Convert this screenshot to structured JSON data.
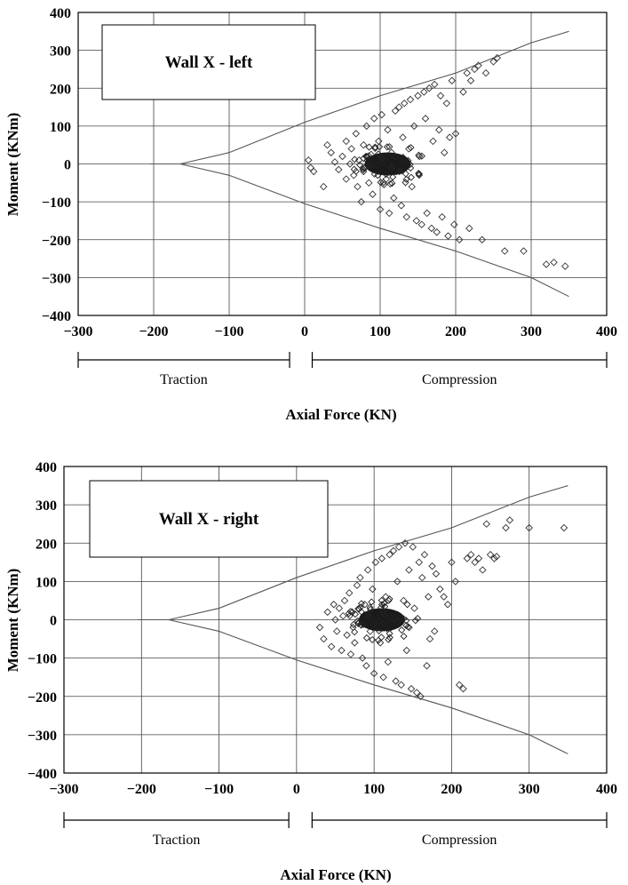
{
  "chart_data": [
    {
      "type": "scatter",
      "title": "Wall X - left",
      "xlabel": "Axial Force (KN)",
      "ylabel": "Moment (KNm)",
      "xlim": [
        -300,
        400
      ],
      "ylim": [
        -400,
        400
      ],
      "xticks": [
        -300,
        -200,
        -100,
        0,
        100,
        200,
        300,
        400
      ],
      "yticks": [
        -400,
        -300,
        -200,
        -100,
        0,
        100,
        200,
        300,
        400
      ],
      "grid": true,
      "regions": [
        {
          "label": "Traction",
          "from": -300,
          "to": -20
        },
        {
          "label": "Compression",
          "from": 10,
          "to": 400
        }
      ],
      "envelope": {
        "upper": [
          [
            -205,
            0
          ],
          [
            -165,
            0
          ],
          [
            -100,
            30
          ],
          [
            0,
            110
          ],
          [
            100,
            180
          ],
          [
            200,
            240
          ],
          [
            300,
            320
          ],
          [
            350,
            350
          ]
        ],
        "lower": [
          [
            -205,
            0
          ],
          [
            -165,
            0
          ],
          [
            -100,
            -30
          ],
          [
            0,
            -105
          ],
          [
            100,
            -170
          ],
          [
            200,
            -230
          ],
          [
            300,
            -300
          ],
          [
            350,
            -350
          ]
        ]
      },
      "series": [
        {
          "values": [
            [
              5,
              10
            ],
            [
              8,
              -10
            ],
            [
              12,
              -20
            ],
            [
              25,
              -60
            ],
            [
              30,
              50
            ],
            [
              35,
              30
            ],
            [
              40,
              5
            ],
            [
              45,
              -15
            ],
            [
              50,
              20
            ],
            [
              55,
              -40
            ],
            [
              55,
              60
            ],
            [
              60,
              0
            ],
            [
              62,
              40
            ],
            [
              65,
              -30
            ],
            [
              68,
              80
            ],
            [
              70,
              -60
            ],
            [
              72,
              10
            ],
            [
              75,
              -100
            ],
            [
              78,
              50
            ],
            [
              80,
              -10
            ],
            [
              82,
              100
            ],
            [
              85,
              -50
            ],
            [
              88,
              25
            ],
            [
              90,
              -80
            ],
            [
              92,
              120
            ],
            [
              95,
              -5
            ],
            [
              98,
              60
            ],
            [
              100,
              -120
            ],
            [
              102,
              130
            ],
            [
              104,
              10
            ],
            [
              108,
              -40
            ],
            [
              110,
              90
            ],
            [
              112,
              -130
            ],
            [
              115,
              30
            ],
            [
              118,
              -90
            ],
            [
              120,
              140
            ],
            [
              122,
              -20
            ],
            [
              125,
              150
            ],
            [
              128,
              -110
            ],
            [
              130,
              70
            ],
            [
              132,
              160
            ],
            [
              135,
              -140
            ],
            [
              138,
              40
            ],
            [
              140,
              170
            ],
            [
              142,
              -60
            ],
            [
              145,
              100
            ],
            [
              148,
              -150
            ],
            [
              150,
              180
            ],
            [
              152,
              20
            ],
            [
              155,
              -160
            ],
            [
              158,
              190
            ],
            [
              160,
              120
            ],
            [
              162,
              -130
            ],
            [
              165,
              200
            ],
            [
              168,
              -170
            ],
            [
              170,
              60
            ],
            [
              172,
              210
            ],
            [
              175,
              -180
            ],
            [
              178,
              90
            ],
            [
              180,
              180
            ],
            [
              182,
              -140
            ],
            [
              185,
              30
            ],
            [
              188,
              160
            ],
            [
              190,
              -190
            ],
            [
              192,
              70
            ],
            [
              195,
              220
            ],
            [
              198,
              -160
            ],
            [
              200,
              80
            ],
            [
              205,
              -200
            ],
            [
              210,
              190
            ],
            [
              215,
              240
            ],
            [
              218,
              -170
            ],
            [
              220,
              220
            ],
            [
              225,
              250
            ],
            [
              230,
              260
            ],
            [
              235,
              -200
            ],
            [
              240,
              240
            ],
            [
              250,
              270
            ],
            [
              255,
              280
            ],
            [
              265,
              -230
            ],
            [
              290,
              -230
            ],
            [
              320,
              -265
            ],
            [
              330,
              -260
            ],
            [
              345,
              -270
            ]
          ]
        }
      ],
      "dense_cluster": {
        "x": 110,
        "y": 0
      }
    },
    {
      "type": "scatter",
      "title": "Wall X - right",
      "xlabel": "Axial Force (KN)",
      "ylabel": "Moment (KNm)",
      "xlim": [
        -300,
        400
      ],
      "ylim": [
        -400,
        400
      ],
      "xticks": [
        -300,
        -200,
        -100,
        0,
        100,
        200,
        300,
        400
      ],
      "yticks": [
        -400,
        -300,
        -200,
        -100,
        0,
        100,
        200,
        300,
        400
      ],
      "grid": true,
      "regions": [
        {
          "label": "Traction",
          "from": -300,
          "to": -10
        },
        {
          "label": "Compression",
          "from": 20,
          "to": 400
        }
      ],
      "envelope": {
        "upper": [
          [
            -205,
            0
          ],
          [
            -165,
            0
          ],
          [
            -100,
            30
          ],
          [
            0,
            110
          ],
          [
            100,
            180
          ],
          [
            200,
            240
          ],
          [
            300,
            320
          ],
          [
            350,
            350
          ]
        ],
        "lower": [
          [
            -205,
            0
          ],
          [
            -165,
            0
          ],
          [
            -100,
            -30
          ],
          [
            0,
            -105
          ],
          [
            100,
            -170
          ],
          [
            200,
            -230
          ],
          [
            300,
            -300
          ],
          [
            350,
            -350
          ]
        ]
      },
      "series": [
        {
          "values": [
            [
              30,
              -20
            ],
            [
              35,
              -50
            ],
            [
              40,
              20
            ],
            [
              45,
              -70
            ],
            [
              48,
              40
            ],
            [
              50,
              0
            ],
            [
              52,
              -30
            ],
            [
              55,
              30
            ],
            [
              58,
              -80
            ],
            [
              60,
              10
            ],
            [
              62,
              50
            ],
            [
              65,
              -40
            ],
            [
              68,
              70
            ],
            [
              70,
              -90
            ],
            [
              72,
              20
            ],
            [
              75,
              -60
            ],
            [
              78,
              90
            ],
            [
              80,
              -10
            ],
            [
              82,
              110
            ],
            [
              85,
              -100
            ],
            [
              88,
              40
            ],
            [
              90,
              -120
            ],
            [
              92,
              130
            ],
            [
              95,
              -30
            ],
            [
              98,
              80
            ],
            [
              100,
              -140
            ],
            [
              102,
              150
            ],
            [
              104,
              10
            ],
            [
              108,
              -60
            ],
            [
              110,
              160
            ],
            [
              112,
              -150
            ],
            [
              115,
              60
            ],
            [
              118,
              -110
            ],
            [
              120,
              170
            ],
            [
              122,
              -20
            ],
            [
              125,
              180
            ],
            [
              128,
              -160
            ],
            [
              130,
              100
            ],
            [
              132,
              190
            ],
            [
              135,
              -170
            ],
            [
              138,
              50
            ],
            [
              140,
              200
            ],
            [
              142,
              -80
            ],
            [
              145,
              130
            ],
            [
              148,
              -180
            ],
            [
              150,
              190
            ],
            [
              152,
              30
            ],
            [
              155,
              -190
            ],
            [
              158,
              150
            ],
            [
              160,
              -200
            ],
            [
              162,
              110
            ],
            [
              165,
              170
            ],
            [
              168,
              -120
            ],
            [
              170,
              60
            ],
            [
              172,
              -50
            ],
            [
              175,
              140
            ],
            [
              178,
              -30
            ],
            [
              180,
              120
            ],
            [
              185,
              80
            ],
            [
              190,
              60
            ],
            [
              195,
              40
            ],
            [
              200,
              150
            ],
            [
              205,
              100
            ],
            [
              210,
              -170
            ],
            [
              215,
              -180
            ],
            [
              220,
              160
            ],
            [
              225,
              170
            ],
            [
              230,
              150
            ],
            [
              235,
              160
            ],
            [
              240,
              130
            ],
            [
              245,
              250
            ],
            [
              250,
              170
            ],
            [
              255,
              160
            ],
            [
              258,
              165
            ],
            [
              270,
              240
            ],
            [
              275,
              260
            ],
            [
              300,
              240
            ],
            [
              345,
              240
            ]
          ]
        }
      ],
      "dense_cluster": {
        "x": 110,
        "y": 0
      }
    }
  ]
}
